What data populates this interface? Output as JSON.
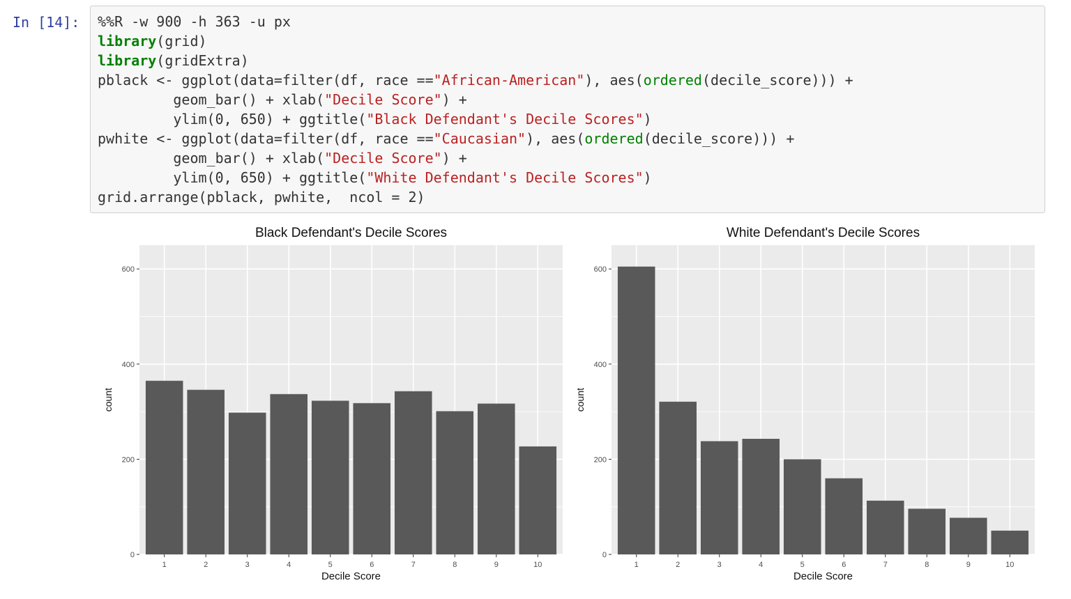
{
  "cell": {
    "prompt": "In [14]:",
    "code_lines": [
      [
        {
          "t": "%%R -w 900 -h 363 -u px",
          "c": "plain"
        }
      ],
      [
        {
          "t": "library",
          "c": "kw"
        },
        {
          "t": "(grid)",
          "c": "plain"
        }
      ],
      [
        {
          "t": "library",
          "c": "kw"
        },
        {
          "t": "(gridExtra)",
          "c": "plain"
        }
      ],
      [
        {
          "t": "pblack <- ggplot(data=filter(df, race ==",
          "c": "plain"
        },
        {
          "t": "\"African-American\"",
          "c": "str"
        },
        {
          "t": "), aes(",
          "c": "plain"
        },
        {
          "t": "ordered",
          "c": "fn"
        },
        {
          "t": "(decile_score))) +",
          "c": "plain"
        }
      ],
      [
        {
          "t": "         geom_bar() + xlab(",
          "c": "plain"
        },
        {
          "t": "\"Decile Score\"",
          "c": "str"
        },
        {
          "t": ") +",
          "c": "plain"
        }
      ],
      [
        {
          "t": "         ylim(0, 650) + ggtitle(",
          "c": "plain"
        },
        {
          "t": "\"Black Defendant's Decile Scores\"",
          "c": "str"
        },
        {
          "t": ")",
          "c": "plain"
        }
      ],
      [
        {
          "t": "pwhite <- ggplot(data=filter(df, race ==",
          "c": "plain"
        },
        {
          "t": "\"Caucasian\"",
          "c": "str"
        },
        {
          "t": "), aes(",
          "c": "plain"
        },
        {
          "t": "ordered",
          "c": "fn"
        },
        {
          "t": "(decile_score))) +",
          "c": "plain"
        }
      ],
      [
        {
          "t": "         geom_bar() + xlab(",
          "c": "plain"
        },
        {
          "t": "\"Decile Score\"",
          "c": "str"
        },
        {
          "t": ") +",
          "c": "plain"
        }
      ],
      [
        {
          "t": "         ylim(0, 650) + ggtitle(",
          "c": "plain"
        },
        {
          "t": "\"White Defendant's Decile Scores\"",
          "c": "str"
        },
        {
          "t": ")",
          "c": "plain"
        }
      ],
      [
        {
          "t": "grid.arrange(pblack, pwhite,  ncol = 2)",
          "c": "plain"
        }
      ]
    ]
  },
  "colors": {
    "panel_bg": "#ebebeb",
    "grid": "#ffffff",
    "bar": "#595959",
    "tick_text": "#4d4d4d"
  },
  "chart_data": [
    {
      "type": "bar",
      "title": "Black Defendant's Decile Scores",
      "xlabel": "Decile Score",
      "ylabel": "count",
      "categories": [
        "1",
        "2",
        "3",
        "4",
        "5",
        "6",
        "7",
        "8",
        "9",
        "10"
      ],
      "values": [
        365,
        346,
        298,
        337,
        323,
        318,
        343,
        301,
        317,
        227
      ],
      "ylim": [
        0,
        650
      ],
      "yticks": [
        0,
        200,
        400,
        600
      ],
      "grid": true
    },
    {
      "type": "bar",
      "title": "White Defendant's Decile Scores",
      "xlabel": "Decile Score",
      "ylabel": "count",
      "categories": [
        "1",
        "2",
        "3",
        "4",
        "5",
        "6",
        "7",
        "8",
        "9",
        "10"
      ],
      "values": [
        605,
        321,
        238,
        243,
        200,
        160,
        113,
        96,
        77,
        50
      ],
      "ylim": [
        0,
        650
      ],
      "yticks": [
        0,
        200,
        400,
        600
      ],
      "grid": true
    }
  ]
}
